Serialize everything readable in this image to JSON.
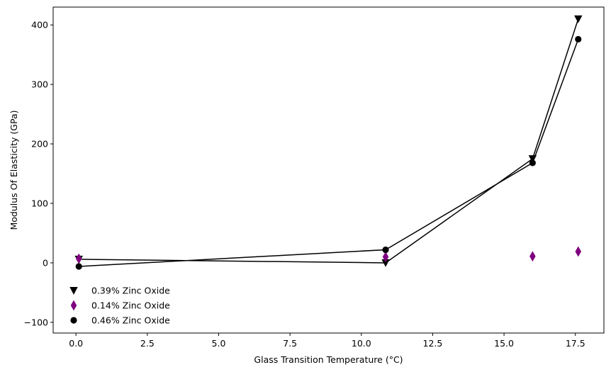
{
  "chart_data": {
    "type": "scatter",
    "xlabel": "Glass Transition Temperature (°C)",
    "ylabel": "Modulus Of Elasticity (GPa)",
    "xlim": [
      -0.8,
      18.5
    ],
    "ylim": [
      -118,
      430
    ],
    "x_ticks": [
      0.0,
      2.5,
      5.0,
      7.5,
      10.0,
      12.5,
      15.0,
      17.5
    ],
    "x_tick_labels": [
      "0.0",
      "2.5",
      "5.0",
      "7.5",
      "10.0",
      "12.5",
      "15.0",
      "17.5"
    ],
    "y_ticks": [
      -100,
      0,
      100,
      200,
      300,
      400
    ],
    "y_tick_labels": [
      "−100",
      "0",
      "100",
      "200",
      "300",
      "400"
    ],
    "grid": false,
    "legend_position": "lower-left",
    "series": [
      {
        "name": "0.39% Zinc Oxide",
        "marker": "triangle-down",
        "color": "#000000",
        "line": true,
        "x": [
          0.1,
          10.85,
          16.0,
          17.6
        ],
        "y": [
          6,
          0,
          175,
          410
        ]
      },
      {
        "name": "0.14% Zinc Oxide",
        "marker": "thin-diamond",
        "color": "#800080",
        "line": false,
        "x": [
          0.1,
          10.85,
          16.0,
          17.6
        ],
        "y": [
          7,
          10,
          11,
          19
        ]
      },
      {
        "name": "0.46% Zinc Oxide",
        "marker": "circle",
        "color": "#000000",
        "line": true,
        "x": [
          0.1,
          10.85,
          16.0,
          17.6
        ],
        "y": [
          -6,
          22,
          168,
          376
        ]
      }
    ]
  }
}
